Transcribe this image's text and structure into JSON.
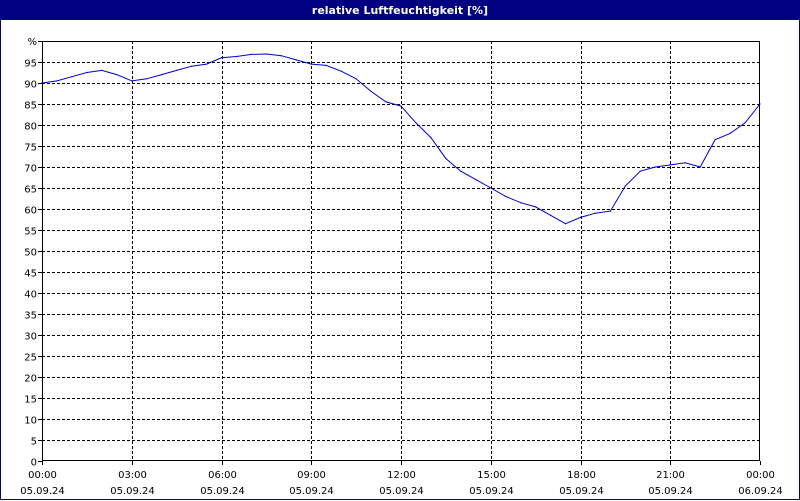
{
  "chart_data": {
    "type": "line",
    "title": "relative Luftfeuchtigkeit [%]",
    "y_unit": "%",
    "ylim": [
      0,
      100
    ],
    "y_ticks": [
      0,
      5,
      10,
      15,
      20,
      25,
      30,
      35,
      40,
      45,
      50,
      55,
      60,
      65,
      70,
      75,
      80,
      85,
      90,
      95
    ],
    "x_ticks": [
      {
        "time": "00:00",
        "date": "05.09.24"
      },
      {
        "time": "03:00",
        "date": "05.09.24"
      },
      {
        "time": "06:00",
        "date": "05.09.24"
      },
      {
        "time": "09:00",
        "date": "05.09.24"
      },
      {
        "time": "12:00",
        "date": "05.09.24"
      },
      {
        "time": "15:00",
        "date": "05.09.24"
      },
      {
        "time": "18:00",
        "date": "05.09.24"
      },
      {
        "time": "21:00",
        "date": "05.09.24"
      },
      {
        "time": "00:00",
        "date": "06.09.24"
      }
    ],
    "grid": true,
    "line_color": "#0000cc",
    "series": [
      {
        "x": [
          "05.09.24 00:00",
          "05.09.24 00:30",
          "05.09.24 01:00",
          "05.09.24 01:30",
          "05.09.24 02:00",
          "05.09.24 02:30",
          "05.09.24 03:00",
          "05.09.24 03:30",
          "05.09.24 04:00",
          "05.09.24 04:30",
          "05.09.24 05:00",
          "05.09.24 05:30",
          "05.09.24 06:00",
          "05.09.24 06:30",
          "05.09.24 07:00",
          "05.09.24 07:30",
          "05.09.24 08:00",
          "05.09.24 08:30",
          "05.09.24 09:00",
          "05.09.24 09:30",
          "05.09.24 10:00",
          "05.09.24 10:30",
          "05.09.24 11:00",
          "05.09.24 11:30",
          "05.09.24 12:00",
          "05.09.24 12:30",
          "05.09.24 13:00",
          "05.09.24 13:30",
          "05.09.24 14:00",
          "05.09.24 14:30",
          "05.09.24 15:00",
          "05.09.24 15:30",
          "05.09.24 16:00",
          "05.09.24 16:30",
          "05.09.24 17:00",
          "05.09.24 17:30",
          "05.09.24 18:00",
          "05.09.24 18:30",
          "05.09.24 19:00",
          "05.09.24 19:30",
          "05.09.24 20:00",
          "05.09.24 20:30",
          "05.09.24 21:00",
          "05.09.24 21:30",
          "05.09.24 22:00",
          "05.09.24 22:30",
          "05.09.24 23:00",
          "05.09.24 23:30",
          "06.09.24 00:00"
        ],
        "values": [
          90,
          90.5,
          91.5,
          92.5,
          93,
          92,
          90.5,
          91,
          92,
          93,
          94,
          94.5,
          96,
          96.3,
          96.8,
          96.9,
          96.5,
          95.5,
          94.5,
          94.2,
          92.8,
          91,
          88,
          85.5,
          84.5,
          80.5,
          77,
          72,
          69,
          67,
          65,
          63,
          61.5,
          60.5,
          58.5,
          56.5,
          58,
          59,
          59.5,
          65.5,
          69,
          70,
          70.5,
          71,
          70,
          76.5,
          78,
          80.5,
          85
        ]
      }
    ]
  }
}
